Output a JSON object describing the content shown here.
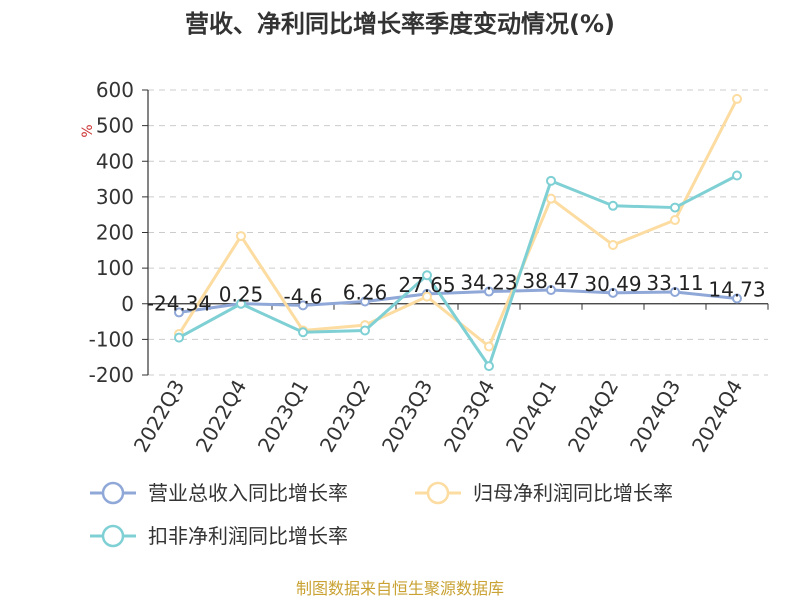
{
  "chart_data": {
    "type": "line",
    "title": "营收、净利同比增长率季度变动情况(%)",
    "ylabel": "%",
    "categories": [
      "2022Q3",
      "2022Q4",
      "2023Q1",
      "2023Q2",
      "2023Q3",
      "2023Q4",
      "2024Q1",
      "2024Q2",
      "2024Q3",
      "2024Q4"
    ],
    "ylim": [
      -200,
      600
    ],
    "yticks": [
      -200,
      -100,
      0,
      100,
      200,
      300,
      400,
      500,
      600
    ],
    "grid": true,
    "legend_position": "bottom",
    "series": [
      {
        "name": "营业总收入同比增长率",
        "color": "#8fa8d8",
        "values": [
          -24.34,
          0.25,
          -4.6,
          6.26,
          27.65,
          34.23,
          38.47,
          30.49,
          33.11,
          14.73
        ],
        "labels": [
          "-24.34",
          "0.25",
          "-4.6",
          "6.26",
          "27.65",
          "34.23",
          "38.47",
          "30.49",
          "33.11",
          "14.73"
        ]
      },
      {
        "name": "归母净利润同比增长率",
        "color": "#fcdca0",
        "values": [
          -85,
          190,
          -75,
          -60,
          20,
          -120,
          295,
          165,
          235,
          575
        ]
      },
      {
        "name": "扣非净利润同比增长率",
        "color": "#7fd0d4",
        "values": [
          -95,
          0,
          -80,
          -75,
          80,
          -175,
          345,
          275,
          270,
          360
        ]
      }
    ]
  },
  "source_text": "制图数据来自恒生聚源数据库"
}
